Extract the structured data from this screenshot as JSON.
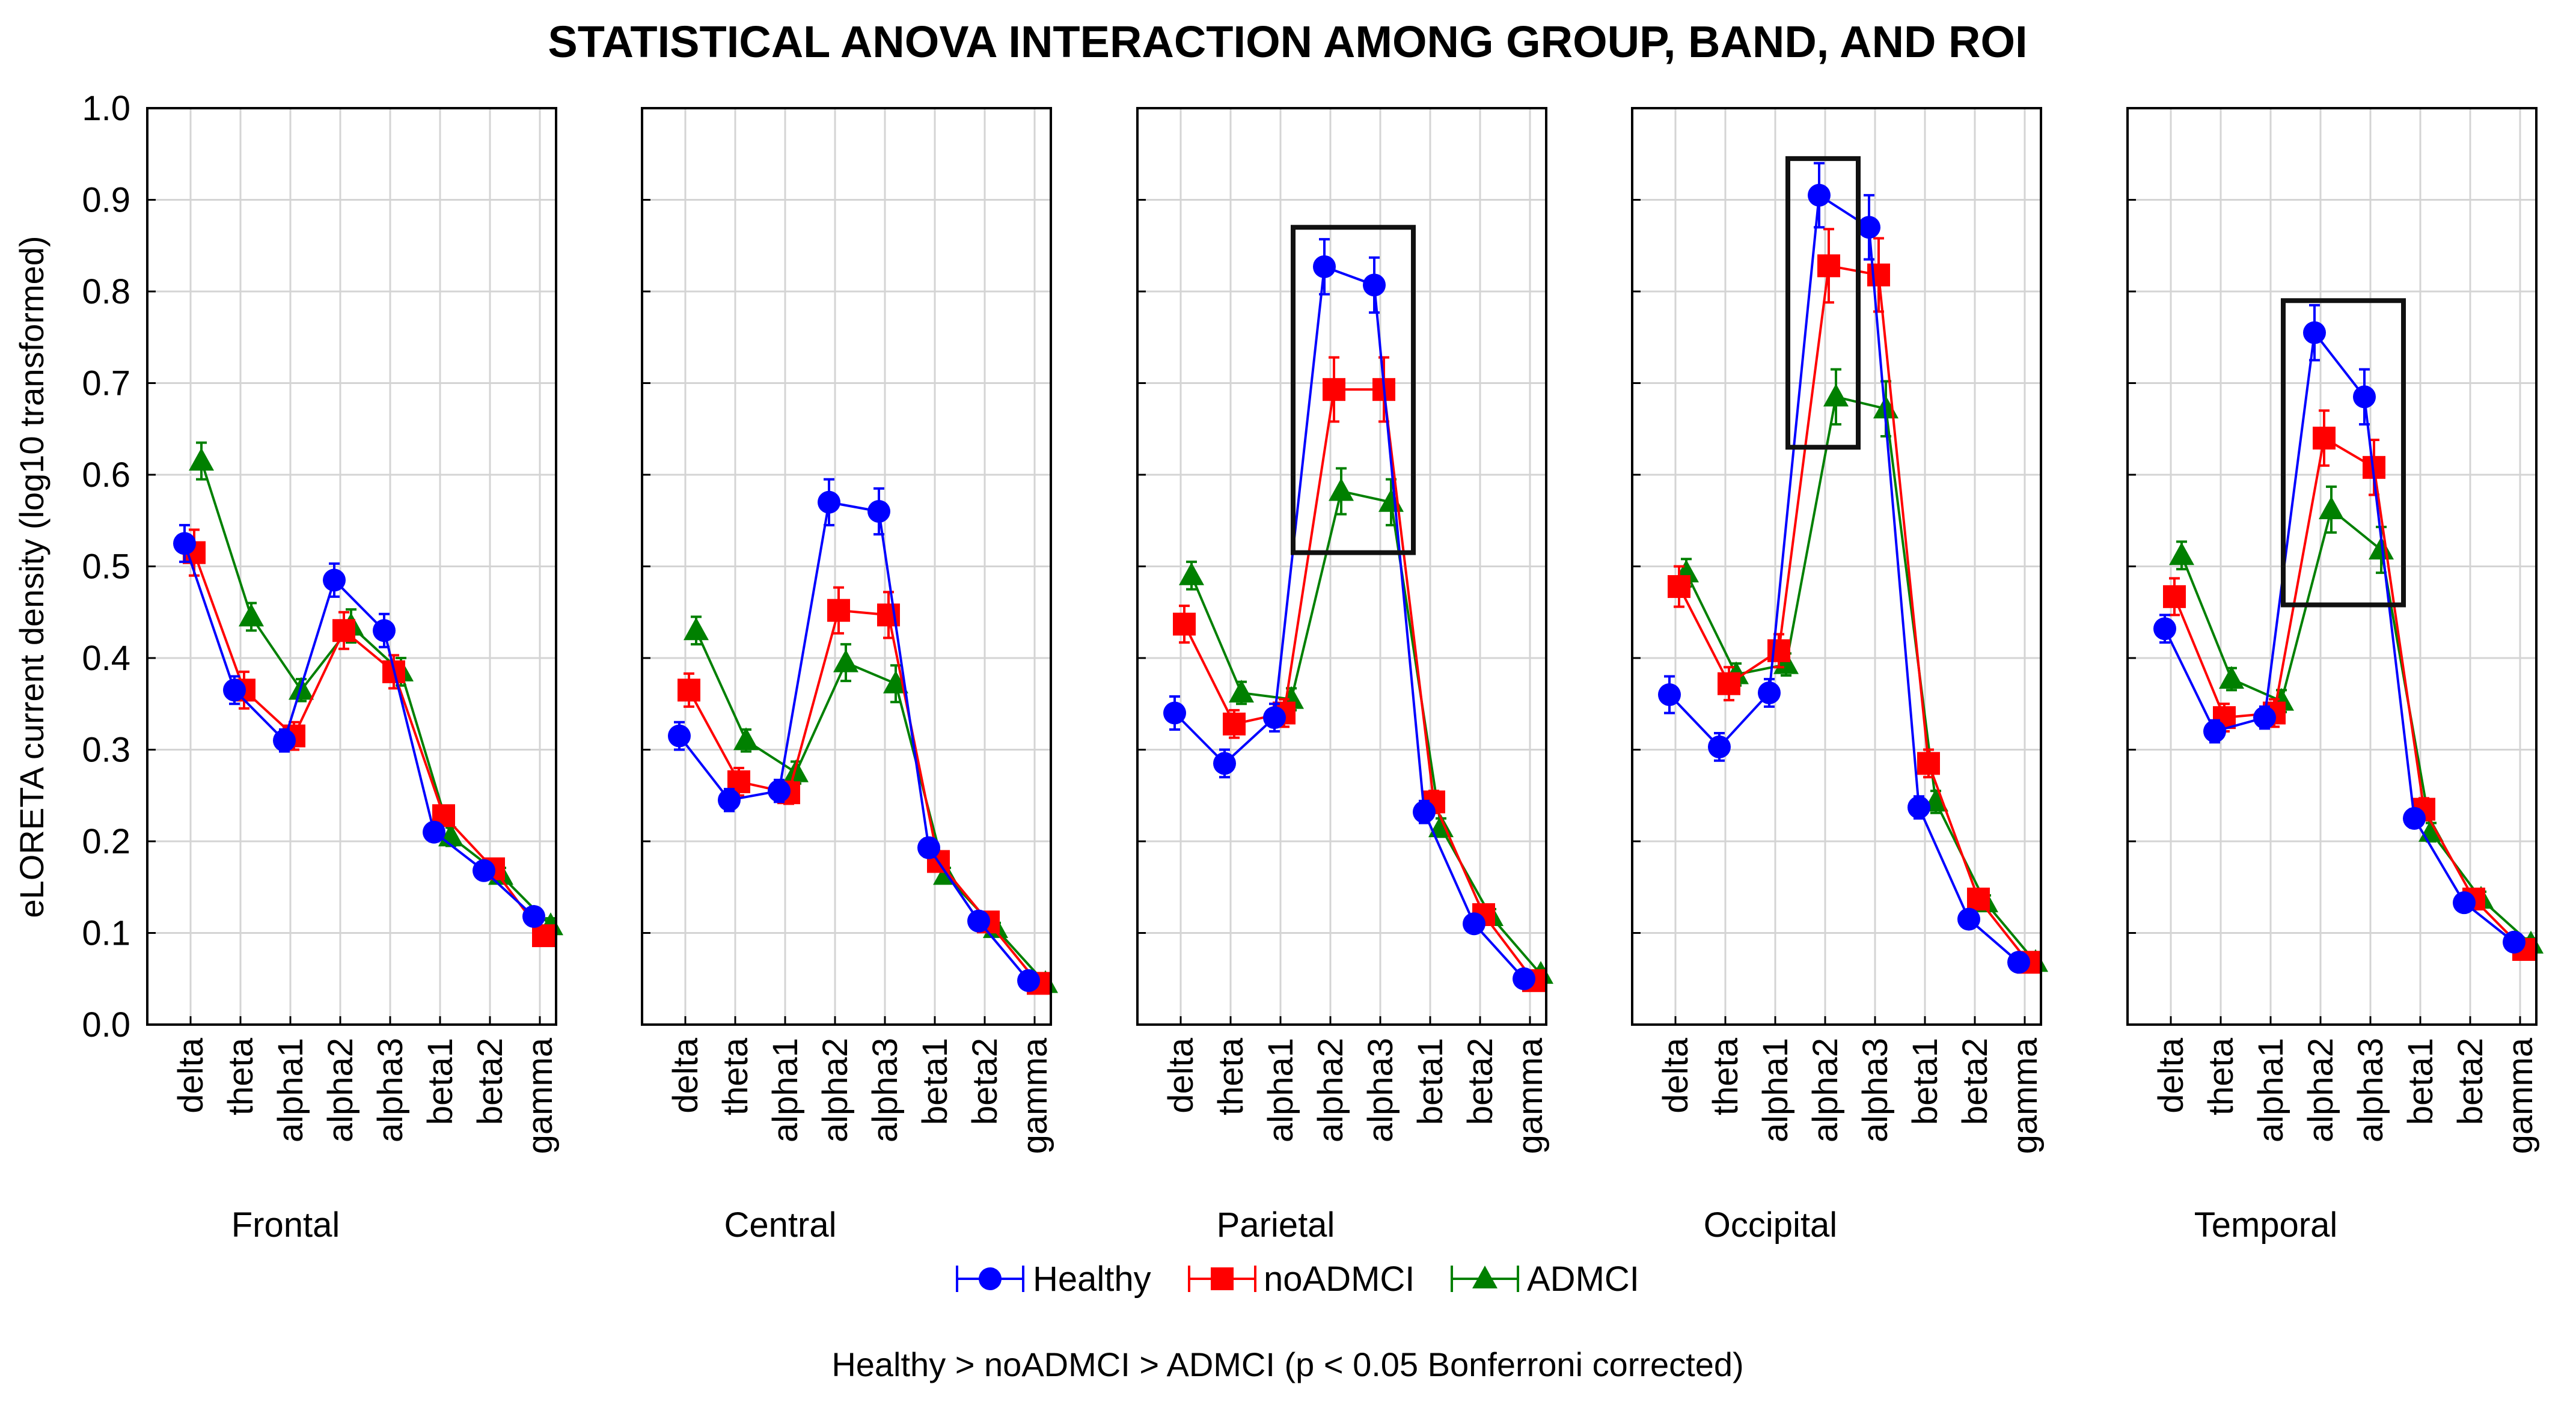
{
  "chart_data": {
    "type": "line",
    "title": "STATISTICAL ANOVA INTERACTION AMONG GROUP, BAND, AND ROI",
    "ylabel": "eLORETA current density (log10 transformed)",
    "ylim": [
      0.0,
      1.0
    ],
    "yticks": [
      "0.0",
      "0.1",
      "0.2",
      "0.3",
      "0.4",
      "0.5",
      "0.6",
      "0.7",
      "0.8",
      "0.9",
      "1.0"
    ],
    "categories": [
      "delta",
      "theta",
      "alpha1",
      "alpha2",
      "alpha3",
      "beta1",
      "beta2",
      "gamma"
    ],
    "grid": true,
    "legend_position": "bottom-center",
    "footnote": "Healthy > noADMCI > ADMCI (p < 0.05 Bonferroni corrected)",
    "series_style": [
      {
        "name": "Healthy",
        "color": "#0000ff",
        "marker": "circle"
      },
      {
        "name": "noADMCI",
        "color": "#ff0000",
        "marker": "square"
      },
      {
        "name": "ADMCI",
        "color": "#008000",
        "marker": "triangle"
      }
    ],
    "panels": [
      {
        "roi": "Frontal",
        "series": [
          {
            "name": "Healthy",
            "values": [
              0.525,
              0.365,
              0.31,
              0.485,
              0.43,
              0.21,
              0.168,
              0.118
            ],
            "err": [
              0.02,
              0.015,
              0.012,
              0.018,
              0.018,
              0.01,
              0.008,
              0.008
            ]
          },
          {
            "name": "noADMCI",
            "values": [
              0.515,
              0.365,
              0.315,
              0.43,
              0.385,
              0.228,
              0.17,
              0.097
            ],
            "err": [
              0.025,
              0.02,
              0.015,
              0.02,
              0.018,
              0.01,
              0.008,
              0.008
            ]
          },
          {
            "name": "ADMCI",
            "values": [
              0.615,
              0.445,
              0.365,
              0.435,
              0.385,
              0.205,
              0.163,
              0.108
            ],
            "err": [
              0.02,
              0.015,
              0.012,
              0.018,
              0.015,
              0.01,
              0.008,
              0.008
            ]
          }
        ]
      },
      {
        "roi": "Central",
        "series": [
          {
            "name": "Healthy",
            "values": [
              0.315,
              0.245,
              0.255,
              0.57,
              0.56,
              0.193,
              0.113,
              0.048
            ],
            "err": [
              0.015,
              0.012,
              0.012,
              0.025,
              0.025,
              0.01,
              0.006,
              0.005
            ]
          },
          {
            "name": "noADMCI",
            "values": [
              0.365,
              0.265,
              0.253,
              0.452,
              0.447,
              0.178,
              0.112,
              0.045
            ],
            "err": [
              0.018,
              0.015,
              0.012,
              0.025,
              0.025,
              0.01,
              0.006,
              0.005
            ]
          },
          {
            "name": "ADMCI",
            "values": [
              0.43,
              0.31,
              0.275,
              0.395,
              0.372,
              0.163,
              0.105,
              0.045
            ],
            "err": [
              0.015,
              0.012,
              0.012,
              0.02,
              0.02,
              0.008,
              0.006,
              0.005
            ]
          }
        ]
      },
      {
        "roi": "Parietal",
        "series": [
          {
            "name": "Healthy",
            "values": [
              0.34,
              0.285,
              0.335,
              0.827,
              0.807,
              0.232,
              0.11,
              0.05
            ],
            "err": [
              0.018,
              0.015,
              0.015,
              0.03,
              0.03,
              0.012,
              0.008,
              0.006
            ]
          },
          {
            "name": "noADMCI",
            "values": [
              0.437,
              0.328,
              0.34,
              0.693,
              0.693,
              0.243,
              0.12,
              0.048
            ],
            "err": [
              0.02,
              0.015,
              0.015,
              0.035,
              0.035,
              0.012,
              0.008,
              0.006
            ]
          },
          {
            "name": "ADMCI",
            "values": [
              0.49,
              0.362,
              0.355,
              0.582,
              0.57,
              0.215,
              0.118,
              0.055
            ],
            "err": [
              0.015,
              0.012,
              0.012,
              0.025,
              0.025,
              0.01,
              0.008,
              0.006
            ]
          }
        ]
      },
      {
        "roi": "Occipital",
        "series": [
          {
            "name": "Healthy",
            "values": [
              0.36,
              0.303,
              0.362,
              0.905,
              0.87,
              0.237,
              0.115,
              0.068
            ],
            "err": [
              0.02,
              0.015,
              0.015,
              0.035,
              0.035,
              0.012,
              0.008,
              0.006
            ]
          },
          {
            "name": "noADMCI",
            "values": [
              0.478,
              0.372,
              0.408,
              0.828,
              0.818,
              0.285,
              0.137,
              0.068
            ],
            "err": [
              0.022,
              0.018,
              0.018,
              0.04,
              0.04,
              0.015,
              0.008,
              0.006
            ]
          },
          {
            "name": "ADMCI",
            "values": [
              0.493,
              0.382,
              0.393,
              0.685,
              0.672,
              0.243,
              0.133,
              0.068
            ],
            "err": [
              0.015,
              0.012,
              0.012,
              0.03,
              0.03,
              0.012,
              0.008,
              0.006
            ]
          }
        ]
      },
      {
        "roi": "Temporal",
        "series": [
          {
            "name": "Healthy",
            "values": [
              0.432,
              0.32,
              0.335,
              0.755,
              0.685,
              0.225,
              0.133,
              0.09
            ],
            "err": [
              0.015,
              0.012,
              0.012,
              0.03,
              0.03,
              0.01,
              0.008,
              0.006
            ]
          },
          {
            "name": "noADMCI",
            "values": [
              0.467,
              0.335,
              0.34,
              0.64,
              0.608,
              0.235,
              0.137,
              0.082
            ],
            "err": [
              0.02,
              0.015,
              0.015,
              0.03,
              0.03,
              0.012,
              0.008,
              0.006
            ]
          },
          {
            "name": "ADMCI",
            "values": [
              0.512,
              0.377,
              0.353,
              0.562,
              0.518,
              0.21,
              0.137,
              0.088
            ],
            "err": [
              0.015,
              0.012,
              0.012,
              0.025,
              0.025,
              0.01,
              0.008,
              0.006
            ]
          }
        ]
      }
    ],
    "highlight_boxes": [
      {
        "roi": "Parietal",
        "categories": [
          "alpha2",
          "alpha3"
        ],
        "y_range": [
          0.515,
          0.87
        ]
      },
      {
        "roi": "Occipital",
        "categories": [
          "alpha2"
        ],
        "y_range": [
          0.63,
          0.945
        ]
      },
      {
        "roi": "Temporal",
        "categories": [
          "alpha2",
          "alpha3"
        ],
        "y_range": [
          0.458,
          0.79
        ]
      }
    ]
  }
}
